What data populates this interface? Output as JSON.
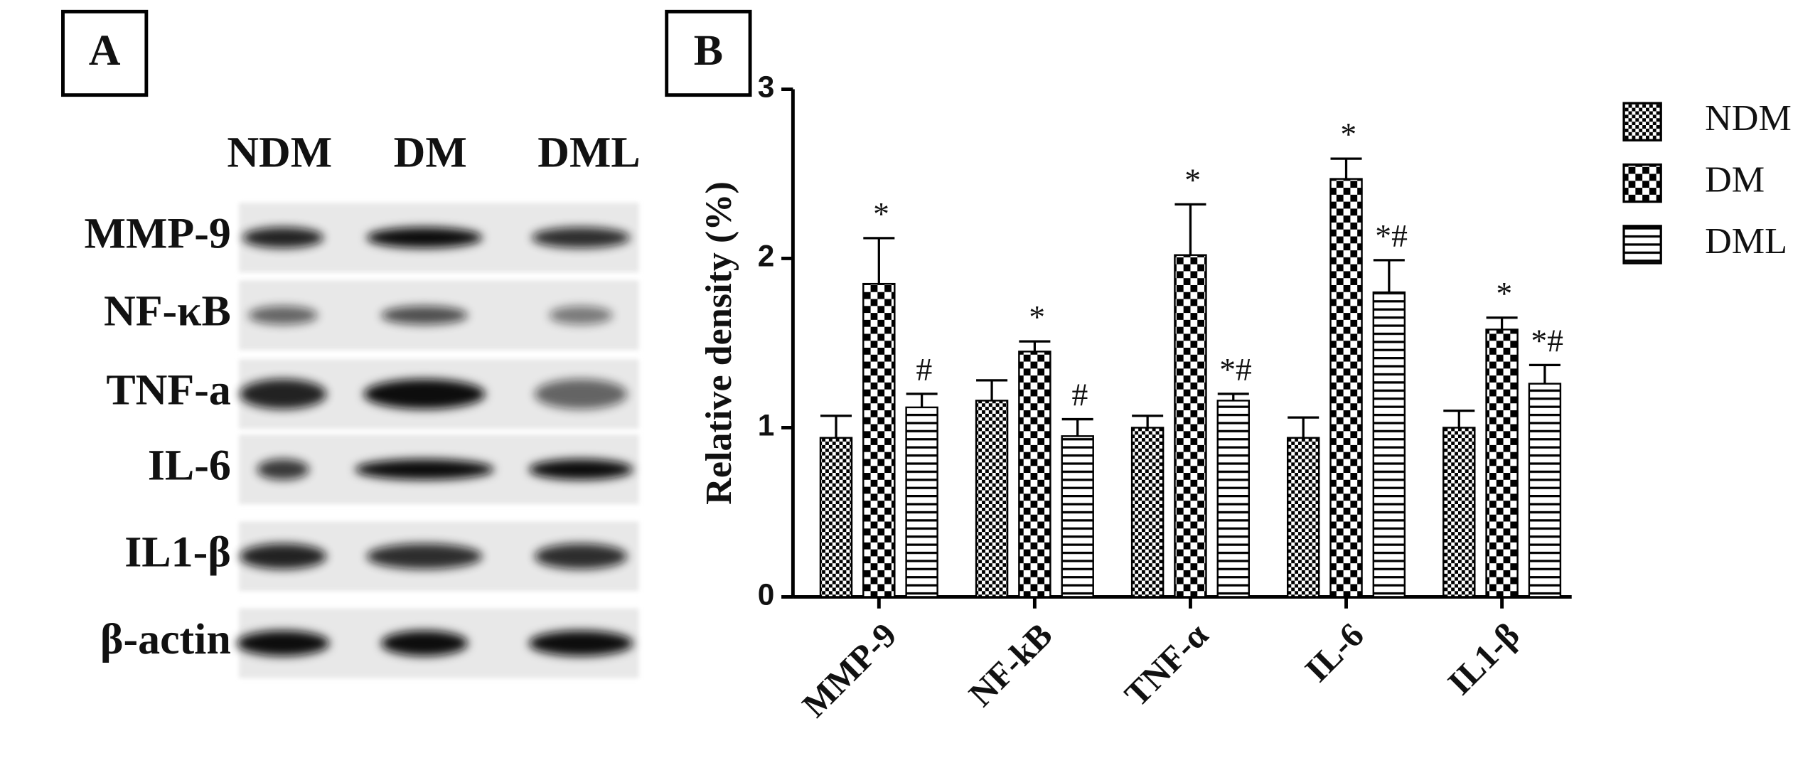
{
  "panel_a": {
    "label": "A",
    "lanes": [
      "NDM",
      "DM",
      "DML"
    ],
    "rows": [
      "MMP-9",
      "NF-κB",
      "TNF-a",
      "IL-6",
      "IL1-β",
      "β-actin"
    ]
  },
  "chart_data": {
    "type": "bar",
    "panel_label": "B",
    "ylabel": "Relative density (%)",
    "categories": [
      "MMP-9",
      "NF-kB",
      "TNF-α",
      "IL-6",
      "IL1-β"
    ],
    "series": [
      {
        "name": "NDM",
        "color": "#000000",
        "pattern": "fine-check",
        "values": [
          0.94,
          1.16,
          1.0,
          0.94,
          1.0
        ],
        "errors": [
          0.13,
          0.12,
          0.07,
          0.12,
          0.1
        ],
        "significance": [
          null,
          null,
          null,
          null,
          null
        ]
      },
      {
        "name": "DM",
        "color": "#000000",
        "pattern": "check",
        "values": [
          1.85,
          1.45,
          2.02,
          2.47,
          1.58
        ],
        "errors": [
          0.27,
          0.06,
          0.3,
          0.12,
          0.07
        ],
        "significance": [
          "*",
          "*",
          "*",
          "*",
          "*"
        ]
      },
      {
        "name": "DML",
        "color": "#000000",
        "pattern": "hstripe",
        "values": [
          1.12,
          0.95,
          1.16,
          1.8,
          1.26
        ],
        "errors": [
          0.08,
          0.1,
          0.04,
          0.19,
          0.11
        ],
        "significance": [
          "#",
          "#",
          "*#",
          "*#",
          "*#"
        ]
      }
    ],
    "ylim": [
      0,
      3
    ],
    "yticks": [
      0,
      1,
      2,
      3
    ],
    "grid": false,
    "legend": "right"
  }
}
